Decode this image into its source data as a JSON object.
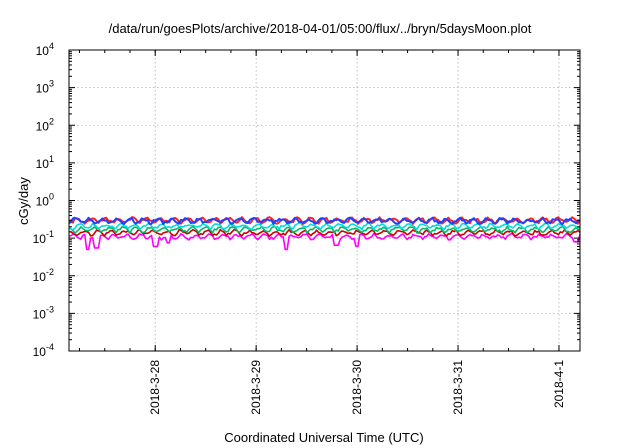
{
  "chart_data": {
    "type": "line",
    "title": "/data/run/goesPlots/archive/2018-04-01/05:00/flux/../bryn/5daysMoon.plot",
    "xlabel": "Coordinated Universal Time (UTC)",
    "ylabel": "cGy/day",
    "yscale": "log",
    "ylim": [
      0.0001,
      10000
    ],
    "xlim": [
      "2018-03-27 03:30",
      "2018-04-01 05:00"
    ],
    "grid": true,
    "y_ticks": [
      {
        "base": "10",
        "exp": "-4"
      },
      {
        "base": "10",
        "exp": "-3"
      },
      {
        "base": "10",
        "exp": "-2"
      },
      {
        "base": "10",
        "exp": "-1"
      },
      {
        "base": "10",
        "exp": "0"
      },
      {
        "base": "10",
        "exp": "1"
      },
      {
        "base": "10",
        "exp": "2"
      },
      {
        "base": "10",
        "exp": "3"
      },
      {
        "base": "10",
        "exp": "4"
      }
    ],
    "x_ticks": [
      {
        "label": "2018-3-28",
        "x": "2018-03-28 00:00"
      },
      {
        "label": "2018-3-29",
        "x": "2018-03-29 00:00"
      },
      {
        "label": "2018-3-30",
        "x": "2018-03-30 00:00"
      },
      {
        "label": "2018-3-31",
        "x": "2018-03-31 00:00"
      },
      {
        "label": "2018-4-1",
        "x": "2018-04-01 00:00"
      }
    ],
    "series": [
      {
        "color": "#ff00ff",
        "y_level": 0.11,
        "dips": [
          {
            "x": "2018-03-27 08:00",
            "y": 0.05
          },
          {
            "x": "2018-03-27 10:00",
            "y": 0.055
          },
          {
            "x": "2018-03-28 00:00",
            "y": 0.06
          },
          {
            "x": "2018-03-28 03:00",
            "y": 0.075
          },
          {
            "x": "2018-03-29 07:00",
            "y": 0.05
          },
          {
            "x": "2018-03-29 19:00",
            "y": 0.065
          },
          {
            "x": "2018-03-30 00:00",
            "y": 0.06
          },
          {
            "x": "2018-04-01 04:00",
            "y": 0.08
          }
        ]
      },
      {
        "color": "#cc0000",
        "y_level": 0.14
      },
      {
        "color": "#00bb66",
        "y_level": 0.17
      },
      {
        "color": "#00dddd",
        "y_level": 0.21
      },
      {
        "color": "#ff2020",
        "y_level": 0.3
      },
      {
        "color": "#2040ff",
        "y_level": 0.29
      }
    ]
  }
}
